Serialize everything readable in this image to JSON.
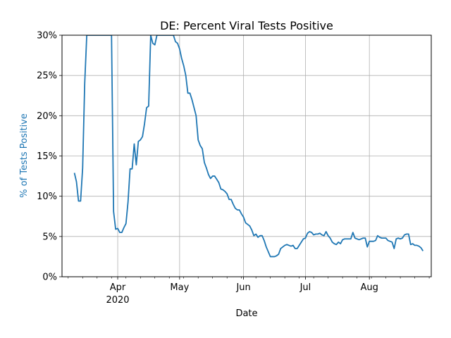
{
  "chart_data": {
    "type": "line",
    "title": "DE: Percent Viral Tests Positive",
    "xlabel": "Date",
    "ylabel": "% of Tests Positive",
    "ylabel_color": "#1f77b4",
    "line_color": "#1f77b4",
    "grid": true,
    "ylim": [
      0,
      30
    ],
    "xlim": [
      "2020-03-05",
      "2020-08-31"
    ],
    "y_ticks": [
      {
        "value": 0,
        "label": "0%"
      },
      {
        "value": 5,
        "label": "5%"
      },
      {
        "value": 10,
        "label": "10%"
      },
      {
        "value": 15,
        "label": "15%"
      },
      {
        "value": 20,
        "label": "20%"
      },
      {
        "value": 25,
        "label": "25%"
      },
      {
        "value": 30,
        "label": "30%"
      }
    ],
    "x_major_ticks": [
      {
        "date": "2020-04-01",
        "label": "Apr",
        "sublabel": "2020"
      },
      {
        "date": "2020-05-01",
        "label": "May",
        "sublabel": ""
      },
      {
        "date": "2020-06-01",
        "label": "Jun",
        "sublabel": ""
      },
      {
        "date": "2020-07-01",
        "label": "Jul",
        "sublabel": ""
      },
      {
        "date": "2020-08-01",
        "label": "Aug",
        "sublabel": ""
      }
    ],
    "series": [
      {
        "points": [
          [
            "2020-03-11",
            12.9
          ],
          [
            "2020-03-12",
            11.8
          ],
          [
            "2020-03-13",
            9.4
          ],
          [
            "2020-03-14",
            9.4
          ],
          [
            "2020-03-15",
            13.5
          ],
          [
            "2020-03-16",
            24.0
          ],
          [
            "2020-03-17",
            30.0
          ],
          [
            "2020-03-29",
            30.0
          ],
          [
            "2020-03-30",
            8.1
          ],
          [
            "2020-03-31",
            5.9
          ],
          [
            "2020-04-01",
            6.0
          ],
          [
            "2020-04-02",
            5.5
          ],
          [
            "2020-04-03",
            5.5
          ],
          [
            "2020-04-04",
            6.1
          ],
          [
            "2020-04-05",
            6.6
          ],
          [
            "2020-04-06",
            9.3
          ],
          [
            "2020-04-07",
            13.4
          ],
          [
            "2020-04-08",
            13.4
          ],
          [
            "2020-04-09",
            16.5
          ],
          [
            "2020-04-10",
            13.9
          ],
          [
            "2020-04-11",
            16.8
          ],
          [
            "2020-04-12",
            17.0
          ],
          [
            "2020-04-13",
            17.4
          ],
          [
            "2020-04-14",
            19.0
          ],
          [
            "2020-04-15",
            21.0
          ],
          [
            "2020-04-16",
            21.2
          ],
          [
            "2020-04-17",
            30.0
          ],
          [
            "2020-04-18",
            29.0
          ],
          [
            "2020-04-19",
            28.8
          ],
          [
            "2020-04-20",
            30.0
          ],
          [
            "2020-04-28",
            30.0
          ],
          [
            "2020-04-29",
            29.2
          ],
          [
            "2020-04-30",
            29.0
          ],
          [
            "2020-05-01",
            28.3
          ],
          [
            "2020-05-02",
            27.1
          ],
          [
            "2020-05-03",
            26.2
          ],
          [
            "2020-05-04",
            25.0
          ],
          [
            "2020-05-05",
            22.8
          ],
          [
            "2020-05-06",
            22.8
          ],
          [
            "2020-05-07",
            22.0
          ],
          [
            "2020-05-08",
            21.0
          ],
          [
            "2020-05-09",
            20.0
          ],
          [
            "2020-05-10",
            17.0
          ],
          [
            "2020-05-11",
            16.3
          ],
          [
            "2020-05-12",
            15.9
          ],
          [
            "2020-05-13",
            14.2
          ],
          [
            "2020-05-14",
            13.5
          ],
          [
            "2020-05-15",
            12.7
          ],
          [
            "2020-05-16",
            12.2
          ],
          [
            "2020-05-17",
            12.5
          ],
          [
            "2020-05-18",
            12.5
          ],
          [
            "2020-05-19",
            12.1
          ],
          [
            "2020-05-20",
            11.7
          ],
          [
            "2020-05-21",
            10.9
          ],
          [
            "2020-05-22",
            10.8
          ],
          [
            "2020-05-23",
            10.6
          ],
          [
            "2020-05-24",
            10.3
          ],
          [
            "2020-05-25",
            9.6
          ],
          [
            "2020-05-26",
            9.6
          ],
          [
            "2020-05-27",
            9.0
          ],
          [
            "2020-05-28",
            8.5
          ],
          [
            "2020-05-29",
            8.3
          ],
          [
            "2020-05-30",
            8.3
          ],
          [
            "2020-05-31",
            7.8
          ],
          [
            "2020-06-01",
            7.4
          ],
          [
            "2020-06-02",
            6.7
          ],
          [
            "2020-06-03",
            6.5
          ],
          [
            "2020-06-04",
            6.3
          ],
          [
            "2020-06-05",
            5.8
          ],
          [
            "2020-06-06",
            5.1
          ],
          [
            "2020-06-07",
            5.3
          ],
          [
            "2020-06-08",
            4.9
          ],
          [
            "2020-06-09",
            5.1
          ],
          [
            "2020-06-10",
            5.1
          ],
          [
            "2020-06-11",
            4.5
          ],
          [
            "2020-06-12",
            3.7
          ],
          [
            "2020-06-13",
            3.1
          ],
          [
            "2020-06-14",
            2.5
          ],
          [
            "2020-06-15",
            2.5
          ],
          [
            "2020-06-16",
            2.5
          ],
          [
            "2020-06-17",
            2.6
          ],
          [
            "2020-06-18",
            2.8
          ],
          [
            "2020-06-19",
            3.5
          ],
          [
            "2020-06-20",
            3.7
          ],
          [
            "2020-06-21",
            3.9
          ],
          [
            "2020-06-22",
            4.0
          ],
          [
            "2020-06-23",
            3.9
          ],
          [
            "2020-06-24",
            3.8
          ],
          [
            "2020-06-25",
            3.9
          ],
          [
            "2020-06-26",
            3.5
          ],
          [
            "2020-06-27",
            3.5
          ],
          [
            "2020-06-28",
            3.9
          ],
          [
            "2020-06-29",
            4.3
          ],
          [
            "2020-06-30",
            4.7
          ],
          [
            "2020-07-01",
            4.8
          ],
          [
            "2020-07-02",
            5.4
          ],
          [
            "2020-07-03",
            5.6
          ],
          [
            "2020-07-04",
            5.5
          ],
          [
            "2020-07-05",
            5.2
          ],
          [
            "2020-07-06",
            5.3
          ],
          [
            "2020-07-07",
            5.3
          ],
          [
            "2020-07-08",
            5.4
          ],
          [
            "2020-07-09",
            5.2
          ],
          [
            "2020-07-10",
            5.1
          ],
          [
            "2020-07-11",
            5.6
          ],
          [
            "2020-07-12",
            5.1
          ],
          [
            "2020-07-13",
            4.8
          ],
          [
            "2020-07-14",
            4.3
          ],
          [
            "2020-07-15",
            4.1
          ],
          [
            "2020-07-16",
            4.0
          ],
          [
            "2020-07-17",
            4.3
          ],
          [
            "2020-07-18",
            4.1
          ],
          [
            "2020-07-19",
            4.6
          ],
          [
            "2020-07-20",
            4.7
          ],
          [
            "2020-07-21",
            4.7
          ],
          [
            "2020-07-22",
            4.7
          ],
          [
            "2020-07-23",
            4.7
          ],
          [
            "2020-07-24",
            5.5
          ],
          [
            "2020-07-25",
            4.8
          ],
          [
            "2020-07-26",
            4.7
          ],
          [
            "2020-07-27",
            4.6
          ],
          [
            "2020-07-28",
            4.7
          ],
          [
            "2020-07-29",
            4.8
          ],
          [
            "2020-07-30",
            4.8
          ],
          [
            "2020-07-31",
            3.7
          ],
          [
            "2020-08-01",
            4.4
          ],
          [
            "2020-08-02",
            4.4
          ],
          [
            "2020-08-03",
            4.4
          ],
          [
            "2020-08-04",
            4.5
          ],
          [
            "2020-08-05",
            5.1
          ],
          [
            "2020-08-06",
            4.9
          ],
          [
            "2020-08-07",
            4.8
          ],
          [
            "2020-08-08",
            4.8
          ],
          [
            "2020-08-09",
            4.8
          ],
          [
            "2020-08-10",
            4.5
          ],
          [
            "2020-08-11",
            4.4
          ],
          [
            "2020-08-12",
            4.3
          ],
          [
            "2020-08-13",
            3.5
          ],
          [
            "2020-08-14",
            4.7
          ],
          [
            "2020-08-15",
            4.8
          ],
          [
            "2020-08-16",
            4.7
          ],
          [
            "2020-08-17",
            4.8
          ],
          [
            "2020-08-18",
            5.2
          ],
          [
            "2020-08-19",
            5.3
          ],
          [
            "2020-08-20",
            5.3
          ],
          [
            "2020-08-21",
            4.0
          ],
          [
            "2020-08-22",
            4.1
          ],
          [
            "2020-08-23",
            3.9
          ],
          [
            "2020-08-24",
            3.9
          ],
          [
            "2020-08-25",
            3.8
          ],
          [
            "2020-08-26",
            3.6
          ],
          [
            "2020-08-27",
            3.2
          ]
        ]
      }
    ]
  }
}
